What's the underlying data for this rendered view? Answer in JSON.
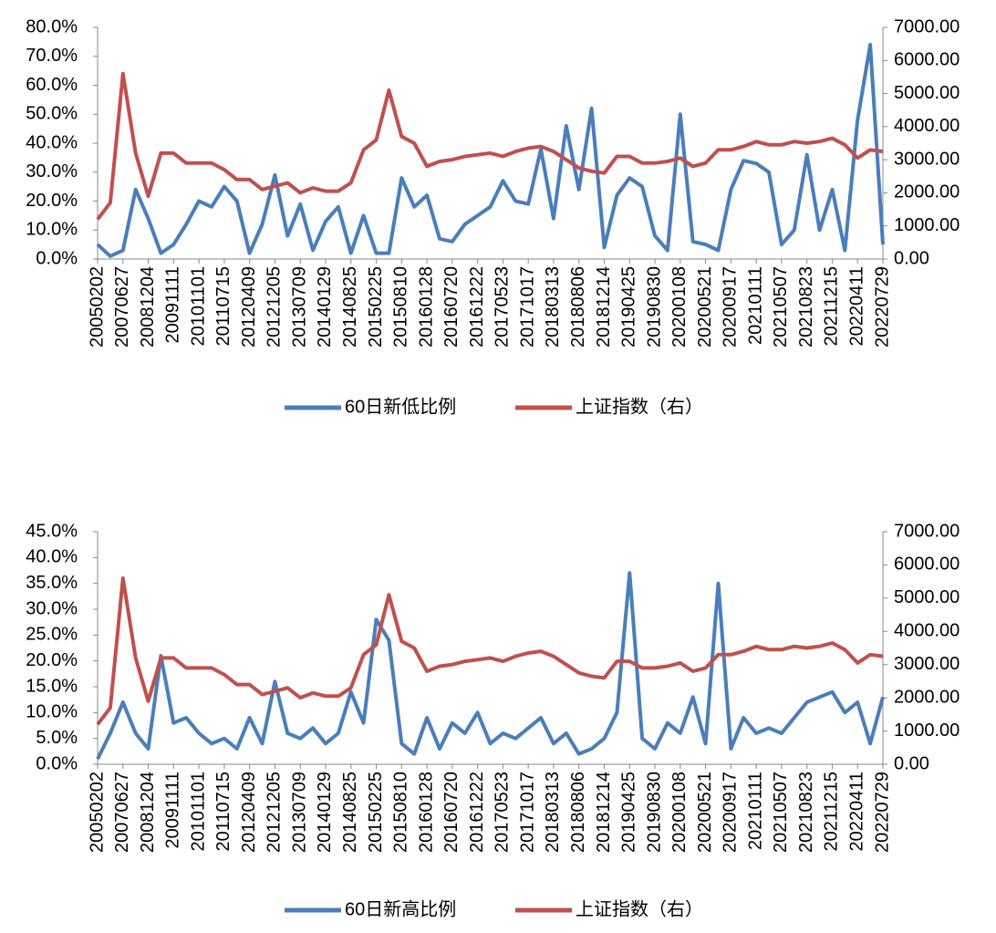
{
  "chart_data": [
    {
      "type": "line",
      "categories": [
        "20050202",
        null,
        "20070627",
        null,
        "20081204",
        null,
        "20091111",
        null,
        "20101101",
        null,
        "20110715",
        null,
        "20120409",
        null,
        "20121205",
        null,
        "20130709",
        null,
        "20140129",
        null,
        "20140825",
        null,
        "20150225",
        null,
        "20150810",
        null,
        "20160128",
        null,
        "20160720",
        null,
        "20161222",
        null,
        "20170523",
        null,
        "20171017",
        null,
        "20180313",
        null,
        "20180806",
        null,
        "20181214",
        null,
        "20190425",
        null,
        "20190830",
        null,
        "20200108",
        null,
        "20200521",
        null,
        "20200917",
        null,
        "20210111",
        null,
        "20210507",
        null,
        "20210823",
        null,
        "20211215",
        null,
        "20220411",
        null,
        "20220729"
      ],
      "series": [
        {
          "name": "60日新低比例",
          "color": "#4a7ebb",
          "axis": "y",
          "values": [
            5,
            1,
            3,
            24,
            14,
            2,
            5,
            12,
            20,
            18,
            25,
            20,
            2,
            12,
            29,
            8,
            19,
            3,
            13,
            18,
            2,
            15,
            2,
            2,
            28,
            18,
            22,
            7,
            6,
            12,
            15,
            18,
            27,
            20,
            19,
            38,
            14,
            46,
            24,
            52,
            4,
            22,
            28,
            25,
            8,
            3,
            50,
            6,
            5,
            3,
            24,
            34,
            33,
            30,
            5,
            10,
            36,
            10,
            24,
            3,
            48,
            74,
            5
          ]
        },
        {
          "name": "上证指数（右）",
          "color": "#c0504d",
          "axis": "y2",
          "values": [
            1200,
            1700,
            5600,
            3200,
            1900,
            3200,
            3200,
            2900,
            2900,
            2900,
            2700,
            2400,
            2400,
            2100,
            2200,
            2300,
            2000,
            2150,
            2050,
            2050,
            2300,
            3300,
            3600,
            5100,
            3700,
            3500,
            2800,
            2950,
            3000,
            3100,
            3150,
            3200,
            3100,
            3250,
            3350,
            3400,
            3250,
            3000,
            2750,
            2650,
            2600,
            3100,
            3100,
            2900,
            2900,
            2950,
            3050,
            2800,
            2900,
            3300,
            3300,
            3400,
            3550,
            3450,
            3450,
            3550,
            3500,
            3550,
            3650,
            3450,
            3050,
            3300,
            3250
          ]
        }
      ],
      "ylim": [
        0,
        80
      ],
      "yticks": [
        {
          "value": 0,
          "label": "0.0%"
        },
        {
          "value": 10,
          "label": "10.0%"
        },
        {
          "value": 20,
          "label": "20.0%"
        },
        {
          "value": 30,
          "label": "30.0%"
        },
        {
          "value": 40,
          "label": "40.0%"
        },
        {
          "value": 50,
          "label": "50.0%"
        },
        {
          "value": 60,
          "label": "60.0%"
        },
        {
          "value": 70,
          "label": "70.0%"
        },
        {
          "value": 80,
          "label": "80.0%"
        }
      ],
      "y2lim": [
        0,
        7000
      ],
      "y2ticks": [
        {
          "value": 0,
          "label": "0.00"
        },
        {
          "value": 1000,
          "label": "1000.00"
        },
        {
          "value": 2000,
          "label": "2000.00"
        },
        {
          "value": 3000,
          "label": "3000.00"
        },
        {
          "value": 4000,
          "label": "4000.00"
        },
        {
          "value": 5000,
          "label": "5000.00"
        },
        {
          "value": 6000,
          "label": "6000.00"
        },
        {
          "value": 7000,
          "label": "7000.00"
        }
      ],
      "legend": "bottom"
    },
    {
      "type": "line",
      "categories": [
        "20050202",
        null,
        "20070627",
        null,
        "20081204",
        null,
        "20091111",
        null,
        "20101101",
        null,
        "20110715",
        null,
        "20120409",
        null,
        "20121205",
        null,
        "20130709",
        null,
        "20140129",
        null,
        "20140825",
        null,
        "20150225",
        null,
        "20150810",
        null,
        "20160128",
        null,
        "20160720",
        null,
        "20161222",
        null,
        "20170523",
        null,
        "20171017",
        null,
        "20180313",
        null,
        "20180806",
        null,
        "20181214",
        null,
        "20190425",
        null,
        "20190830",
        null,
        "20200108",
        null,
        "20200521",
        null,
        "20200917",
        null,
        "20210111",
        null,
        "20210507",
        null,
        "20210823",
        null,
        "20211215",
        null,
        "20220411",
        null,
        "20220729"
      ],
      "series": [
        {
          "name": "60日新高比例",
          "color": "#4a7ebb",
          "axis": "y",
          "values": [
            1,
            6,
            12,
            6,
            3,
            21,
            8,
            9,
            6,
            4,
            5,
            3,
            9,
            4,
            16,
            6,
            5,
            7,
            4,
            6,
            14,
            8,
            28,
            24,
            4,
            2,
            9,
            3,
            8,
            6,
            10,
            4,
            6,
            5,
            7,
            9,
            4,
            6,
            2,
            3,
            5,
            10,
            37,
            5,
            3,
            8,
            6,
            13,
            4,
            35,
            3,
            9,
            6,
            7,
            6,
            9,
            12,
            13,
            14,
            10,
            12,
            4,
            13
          ]
        },
        {
          "name": "上证指数（右）",
          "color": "#c0504d",
          "axis": "y2",
          "values": [
            1200,
            1700,
            5600,
            3200,
            1900,
            3200,
            3200,
            2900,
            2900,
            2900,
            2700,
            2400,
            2400,
            2100,
            2200,
            2300,
            2000,
            2150,
            2050,
            2050,
            2300,
            3300,
            3600,
            5100,
            3700,
            3500,
            2800,
            2950,
            3000,
            3100,
            3150,
            3200,
            3100,
            3250,
            3350,
            3400,
            3250,
            3000,
            2750,
            2650,
            2600,
            3100,
            3100,
            2900,
            2900,
            2950,
            3050,
            2800,
            2900,
            3300,
            3300,
            3400,
            3550,
            3450,
            3450,
            3550,
            3500,
            3550,
            3650,
            3450,
            3050,
            3300,
            3250
          ]
        }
      ],
      "ylim": [
        0,
        45
      ],
      "yticks": [
        {
          "value": 0,
          "label": "0.0%"
        },
        {
          "value": 5,
          "label": "5.0%"
        },
        {
          "value": 10,
          "label": "10.0%"
        },
        {
          "value": 15,
          "label": "15.0%"
        },
        {
          "value": 20,
          "label": "20.0%"
        },
        {
          "value": 25,
          "label": "25.0%"
        },
        {
          "value": 30,
          "label": "30.0%"
        },
        {
          "value": 35,
          "label": "35.0%"
        },
        {
          "value": 40,
          "label": "40.0%"
        },
        {
          "value": 45,
          "label": "45.0%"
        }
      ],
      "y2lim": [
        0,
        7000
      ],
      "y2ticks": [
        {
          "value": 0,
          "label": "0.00"
        },
        {
          "value": 1000,
          "label": "1000.00"
        },
        {
          "value": 2000,
          "label": "2000.00"
        },
        {
          "value": 3000,
          "label": "3000.00"
        },
        {
          "value": 4000,
          "label": "4000.00"
        },
        {
          "value": 5000,
          "label": "5000.00"
        },
        {
          "value": 6000,
          "label": "6000.00"
        },
        {
          "value": 7000,
          "label": "7000.00"
        }
      ],
      "legend": "bottom"
    }
  ]
}
